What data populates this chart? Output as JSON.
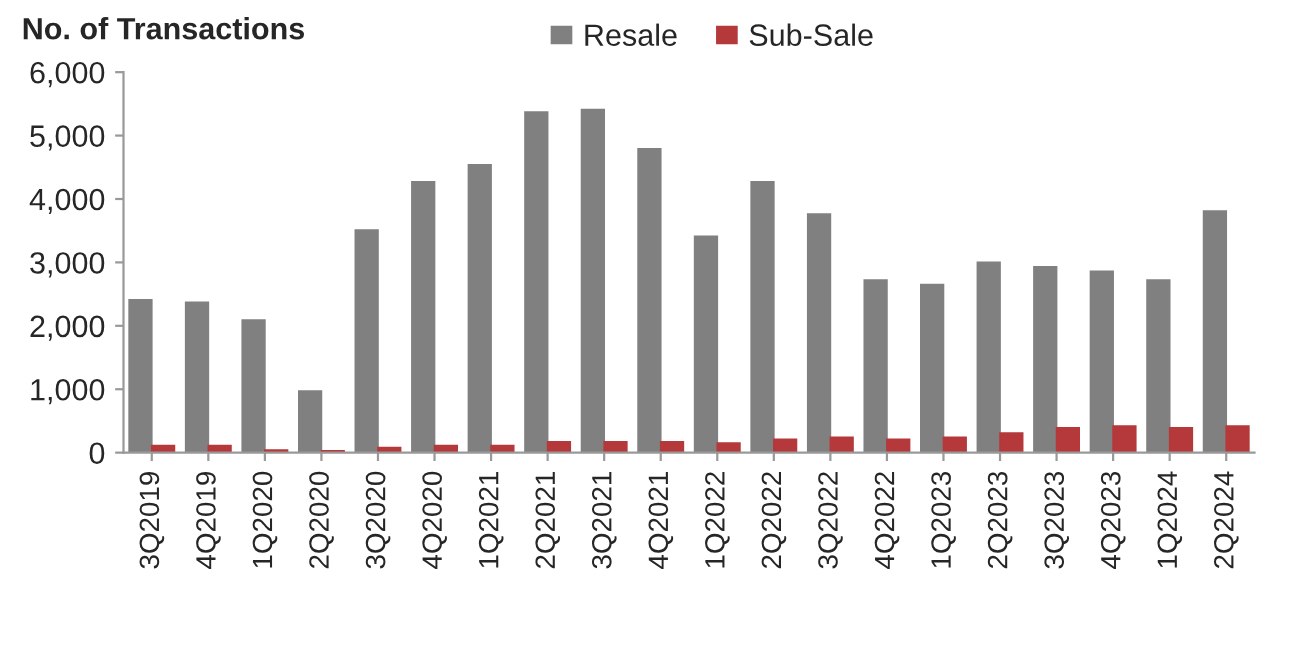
{
  "chart_data": {
    "type": "bar",
    "ylabel": "No. of Transactions",
    "categories": [
      "3Q2019",
      "4Q2019",
      "1Q2020",
      "2Q2020",
      "3Q2020",
      "4Q2020",
      "1Q2021",
      "2Q2021",
      "3Q2021",
      "4Q2021",
      "1Q2022",
      "2Q2022",
      "3Q2022",
      "4Q2022",
      "1Q2023",
      "2Q2023",
      "3Q2023",
      "4Q2023",
      "1Q2024",
      "2Q2024"
    ],
    "series": [
      {
        "name": "Resale",
        "color": "#808080",
        "values": [
          2410,
          2370,
          2090,
          970,
          3510,
          4270,
          4540,
          5370,
          5410,
          4790,
          3410,
          4270,
          3760,
          2720,
          2650,
          3000,
          2930,
          2860,
          2720,
          3810
        ]
      },
      {
        "name": "Sub-Sale",
        "color": "#b5393b",
        "values": [
          110,
          110,
          40,
          30,
          80,
          110,
          110,
          170,
          170,
          170,
          150,
          210,
          240,
          210,
          240,
          310,
          390,
          420,
          390,
          420
        ]
      }
    ],
    "ylim": [
      0,
      6000
    ],
    "yticks": [
      {
        "value": 0,
        "label": "0"
      },
      {
        "value": 1000,
        "label": "1,000"
      },
      {
        "value": 2000,
        "label": "2,000"
      },
      {
        "value": 3000,
        "label": "3,000"
      },
      {
        "value": 4000,
        "label": "4,000"
      },
      {
        "value": 5000,
        "label": "5,000"
      },
      {
        "value": 6000,
        "label": "6,000"
      }
    ],
    "grid": false,
    "legend": "top"
  }
}
